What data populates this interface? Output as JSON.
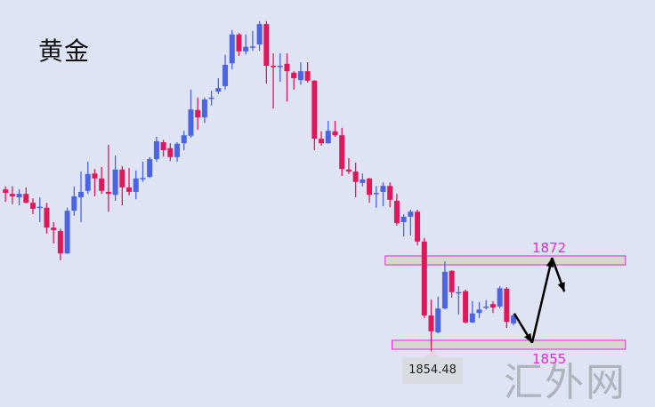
{
  "chart_data": {
    "type": "candlestick",
    "title": "黄金",
    "xlim": [
      0.2,
      95.6
    ],
    "ylim": [
      1844.97,
      1924.45
    ],
    "grid": false,
    "colors": {
      "up": "#4a64e2",
      "down": "#e0185a",
      "zone_border": "#e028d8",
      "zone_fill": "#d6d8d0",
      "arrow": "#000000",
      "background": "#dfe4f4"
    },
    "candles": [
      [
        1886.3,
        1885.6,
        1886.9,
        1883.8
      ],
      [
        1885.4,
        1884.9,
        1886.9,
        1883.3
      ],
      [
        1884.7,
        1885.4,
        1886.3,
        1883.1
      ],
      [
        1885.4,
        1883.6,
        1886.7,
        1883.5
      ],
      [
        1883.6,
        1882.4,
        1884.5,
        1881.3
      ],
      [
        1882.7,
        1882.8,
        1884.7,
        1879.7
      ],
      [
        1882.6,
        1878.6,
        1883.6,
        1877.4
      ],
      [
        1878.6,
        1878.1,
        1879.7,
        1875.4
      ],
      [
        1877.9,
        1873.4,
        1878.4,
        1872.0
      ],
      [
        1873.4,
        1882.0,
        1882.6,
        1873.3
      ],
      [
        1882.0,
        1884.9,
        1886.9,
        1881.0
      ],
      [
        1884.7,
        1885.8,
        1889.9,
        1879.7
      ],
      [
        1886.0,
        1889.4,
        1891.9,
        1885.4
      ],
      [
        1889.5,
        1888.5,
        1890.4,
        1884.9
      ],
      [
        1888.5,
        1886.0,
        1890.8,
        1885.4
      ],
      [
        1885.8,
        1885.4,
        1895.3,
        1881.8
      ],
      [
        1885.2,
        1890.3,
        1893.1,
        1884.0
      ],
      [
        1890.3,
        1886.7,
        1891.0,
        1883.1
      ],
      [
        1886.7,
        1885.8,
        1890.6,
        1885.1
      ],
      [
        1885.8,
        1888.5,
        1890.1,
        1884.3
      ],
      [
        1888.5,
        1888.6,
        1891.9,
        1887.8
      ],
      [
        1888.8,
        1892.4,
        1892.8,
        1888.6
      ],
      [
        1892.4,
        1896.0,
        1896.9,
        1891.9
      ],
      [
        1895.8,
        1894.2,
        1896.3,
        1892.9
      ],
      [
        1894.6,
        1892.8,
        1895.6,
        1892.0
      ],
      [
        1892.8,
        1895.5,
        1895.8,
        1891.9
      ],
      [
        1895.6,
        1897.2,
        1898.1,
        1894.2
      ],
      [
        1897.1,
        1902.4,
        1906.4,
        1896.7
      ],
      [
        1902.3,
        1900.8,
        1904.8,
        1898.3
      ],
      [
        1900.8,
        1904.4,
        1904.8,
        1899.7
      ],
      [
        1904.6,
        1904.8,
        1906.2,
        1903.2
      ],
      [
        1906.0,
        1906.7,
        1908.7,
        1905.5
      ],
      [
        1907.1,
        1911.4,
        1913.4,
        1906.4
      ],
      [
        1911.7,
        1917.5,
        1918.4,
        1910.5
      ],
      [
        1917.5,
        1914.1,
        1917.8,
        1913.2
      ],
      [
        1914.1,
        1915.0,
        1917.5,
        1913.5
      ],
      [
        1915.0,
        1915.1,
        1918.2,
        1914.2
      ],
      [
        1915.5,
        1919.6,
        1920.2,
        1914.2
      ],
      [
        1919.6,
        1911.2,
        1920.2,
        1907.6
      ],
      [
        1911.2,
        1911.1,
        1913.7,
        1902.6
      ],
      [
        1911.0,
        1911.2,
        1913.7,
        1908.0
      ],
      [
        1911.6,
        1910.1,
        1913.7,
        1904.0
      ],
      [
        1909.8,
        1908.7,
        1910.1,
        1906.4
      ],
      [
        1908.3,
        1910.1,
        1911.9,
        1907.4
      ],
      [
        1910.1,
        1908.2,
        1911.9,
        1907.8
      ],
      [
        1908.2,
        1896.5,
        1908.3,
        1894.2
      ],
      [
        1896.5,
        1895.6,
        1898.0,
        1895.1
      ],
      [
        1895.6,
        1898.1,
        1900.1,
        1895.5
      ],
      [
        1898.0,
        1897.2,
        1900.1,
        1896.9
      ],
      [
        1897.2,
        1890.4,
        1898.7,
        1889.0
      ],
      [
        1890.3,
        1889.9,
        1892.6,
        1889.4
      ],
      [
        1889.9,
        1887.8,
        1891.7,
        1884.7
      ],
      [
        1887.6,
        1888.3,
        1889.5,
        1886.9
      ],
      [
        1888.5,
        1885.2,
        1888.6,
        1883.6
      ],
      [
        1885.5,
        1885.6,
        1887.0,
        1882.6
      ],
      [
        1885.8,
        1887.0,
        1887.7,
        1882.9
      ],
      [
        1887.0,
        1884.2,
        1887.7,
        1882.7
      ],
      [
        1884.0,
        1879.5,
        1885.4,
        1879.0
      ],
      [
        1879.7,
        1880.8,
        1881.3,
        1876.8
      ],
      [
        1880.8,
        1881.8,
        1882.2,
        1877.0
      ],
      [
        1881.8,
        1875.8,
        1882.2,
        1875.0
      ],
      [
        1875.8,
        1860.9,
        1876.5,
        1860.4
      ],
      [
        1860.9,
        1857.7,
        1864.1,
        1854.48
      ],
      [
        1857.5,
        1862.3,
        1864.7,
        1857.3
      ],
      [
        1862.3,
        1869.7,
        1871.8,
        1862.2
      ],
      [
        1869.9,
        1865.6,
        1870.0,
        1864.5
      ],
      [
        1865.5,
        1865.6,
        1866.8,
        1861.1
      ],
      [
        1865.8,
        1859.5,
        1866.1,
        1859.3
      ],
      [
        1859.5,
        1861.3,
        1863.8,
        1859.4
      ],
      [
        1861.4,
        1862.1,
        1863.6,
        1860.4
      ],
      [
        1862.6,
        1862.7,
        1864.0,
        1862.1
      ],
      [
        1863.2,
        1862.5,
        1863.8,
        1861.4
      ],
      [
        1862.7,
        1866.4,
        1866.8,
        1862.3
      ],
      [
        1866.3,
        1859.6,
        1866.6,
        1858.4
      ],
      [
        1859.3,
        1860.9,
        1861.2,
        1858.9
      ]
    ],
    "candle_format": [
      "open",
      "close",
      "high",
      "low"
    ],
    "zones": [
      {
        "label": "1872",
        "top": 1872.9,
        "bottom": 1871.1,
        "x_from": 56.3,
        "x_to": 91.3
      },
      {
        "label": "1855",
        "top": 1855.9,
        "bottom": 1854.1,
        "x_from": 57.3,
        "x_to": 91.3
      }
    ],
    "arrow_path": [
      [
        75.1,
        1861.3
      ],
      [
        77.7,
        1855.4
      ],
      [
        80.6,
        1872.5
      ],
      [
        82.4,
        1865.7
      ]
    ],
    "low_marker": {
      "label": "1854.48",
      "candle": 63
    }
  },
  "watermark": "汇外网"
}
